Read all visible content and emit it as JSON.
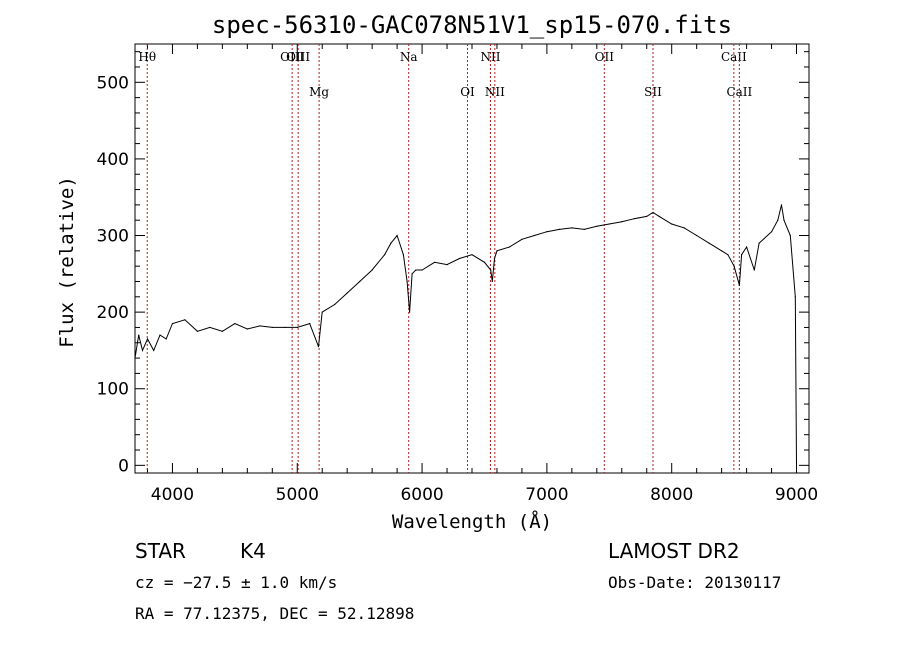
{
  "chart_data": {
    "type": "line",
    "title": "spec-56310-GAC078N51V1_sp15-070.fits",
    "xlabel": "Wavelength (Å)",
    "ylabel": "Flux (relative)",
    "xlim": [
      3700,
      9100
    ],
    "ylim": [
      -10,
      550
    ],
    "x_ticks": [
      4000,
      5000,
      6000,
      7000,
      8000,
      9000
    ],
    "x_tick_labels": [
      "4000",
      "5000",
      "6000",
      "7000",
      "8000",
      "9000"
    ],
    "y_ticks": [
      0,
      100,
      200,
      300,
      400,
      500
    ],
    "y_tick_labels": [
      "0",
      "100",
      "200",
      "300",
      "400",
      "500"
    ],
    "grid": false,
    "series": [
      {
        "color": "#000000",
        "x": [
          3700,
          3730,
          3760,
          3800,
          3850,
          3900,
          3950,
          4000,
          4100,
          4200,
          4300,
          4400,
          4500,
          4600,
          4700,
          4800,
          4900,
          5000,
          5100,
          5170,
          5200,
          5300,
          5400,
          5500,
          5600,
          5700,
          5750,
          5800,
          5850,
          5880,
          5900,
          5920,
          5950,
          6000,
          6100,
          6200,
          6300,
          6400,
          6500,
          6550,
          6563,
          6580,
          6600,
          6700,
          6800,
          6900,
          7000,
          7100,
          7200,
          7300,
          7400,
          7500,
          7600,
          7700,
          7800,
          7850,
          7900,
          8000,
          8100,
          8200,
          8300,
          8400,
          8450,
          8500,
          8542,
          8560,
          8600,
          8662,
          8700,
          8800,
          8850,
          8880,
          8900,
          8950,
          8990,
          9000
        ],
        "y": [
          140,
          170,
          150,
          165,
          150,
          170,
          165,
          185,
          190,
          175,
          180,
          175,
          185,
          178,
          182,
          180,
          180,
          180,
          185,
          155,
          200,
          210,
          225,
          240,
          255,
          275,
          290,
          300,
          275,
          240,
          200,
          250,
          255,
          255,
          265,
          262,
          270,
          275,
          265,
          255,
          240,
          270,
          280,
          285,
          295,
          300,
          305,
          308,
          310,
          308,
          312,
          315,
          318,
          322,
          325,
          330,
          325,
          315,
          310,
          300,
          290,
          280,
          275,
          260,
          235,
          275,
          285,
          255,
          290,
          305,
          320,
          340,
          320,
          300,
          220,
          0
        ]
      }
    ],
    "lines": [
      {
        "label": "Hθ",
        "x": 3798
      },
      {
        "label": "OIII",
        "x": 4959
      },
      {
        "label": "OIII",
        "x": 5007
      },
      {
        "label": "Mg",
        "x": 5175
      },
      {
        "label": "Na",
        "x": 5893
      },
      {
        "label": "OI",
        "x": 6364
      },
      {
        "label": "NII",
        "x": 6548
      },
      {
        "label": "NII",
        "x": 6583
      },
      {
        "label": "OII",
        "x": 7460
      },
      {
        "label": "SII",
        "x": 7850
      },
      {
        "label": "CaII",
        "x": 8498
      },
      {
        "label": "CaII",
        "x": 8542
      }
    ]
  },
  "info": {
    "object_class": "STAR",
    "subclass": "K4",
    "survey": "LAMOST DR2",
    "cz": "cz = −27.5 ± 1.0 km/s",
    "obs_date": "Obs-Date: 20130117",
    "radec": "RA =  77.12375, DEC =  52.12898"
  }
}
